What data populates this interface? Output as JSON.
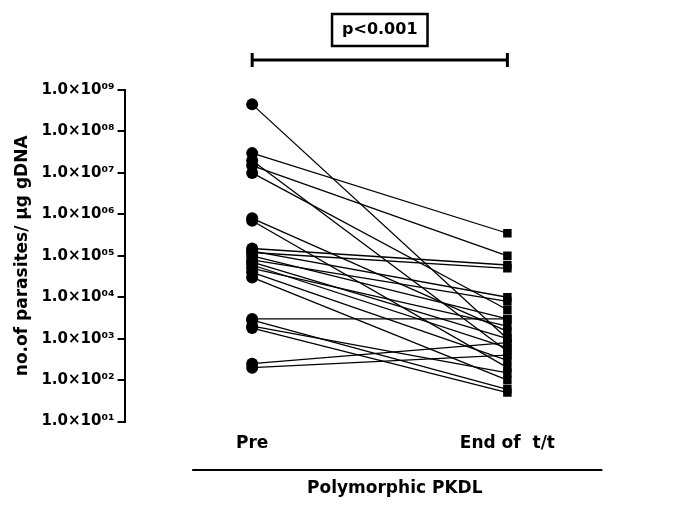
{
  "chart_data": {
    "type": "line",
    "ylabel": "no.of parasites/ µg gDNA",
    "xlabel": "Polymorphic PKDL",
    "annotations": [
      {
        "text": "p<0.001"
      }
    ],
    "categories": [
      "Pre",
      "End of  t/t"
    ],
    "color": "#000000",
    "log": "y",
    "grid": false,
    "ylim": [
      10,
      1000000000
    ],
    "yticks": [
      {
        "value": 10,
        "label": "1.0×10⁰¹"
      },
      {
        "value": 100,
        "label": "1.0×10⁰²"
      },
      {
        "value": 1000,
        "label": "1.0×10⁰³"
      },
      {
        "value": 10000,
        "label": "1.0×10⁰⁴"
      },
      {
        "value": 100000,
        "label": "1.0×10⁰⁵"
      },
      {
        "value": 1000000,
        "label": "1.0×10⁰⁶"
      },
      {
        "value": 10000000,
        "label": "1.0×10⁰⁷"
      },
      {
        "value": 100000000,
        "label": "1.0×10⁰⁸"
      },
      {
        "value": 1000000000,
        "label": "1.0×10⁰⁹"
      }
    ],
    "series": [
      {
        "values": [
          450000000,
          1000
        ]
      },
      {
        "values": [
          30000000,
          350000
        ]
      },
      {
        "values": [
          20000000,
          500
        ]
      },
      {
        "values": [
          15000000,
          100000
        ]
      },
      {
        "values": [
          10000000,
          5000
        ]
      },
      {
        "values": [
          800000,
          1500
        ]
      },
      {
        "values": [
          700000,
          200
        ]
      },
      {
        "values": [
          150000,
          60000
        ]
      },
      {
        "values": [
          130000,
          10000
        ]
      },
      {
        "values": [
          120000,
          50000
        ]
      },
      {
        "values": [
          100000,
          3000
        ]
      },
      {
        "values": [
          80000,
          8000
        ]
      },
      {
        "values": [
          70000,
          1000
        ]
      },
      {
        "values": [
          60000,
          600
        ]
      },
      {
        "values": [
          50000,
          2000
        ]
      },
      {
        "values": [
          40000,
          300
        ]
      },
      {
        "values": [
          30000,
          100
        ]
      },
      {
        "values": [
          3000,
          3000
        ]
      },
      {
        "values": [
          2800,
          60
        ]
      },
      {
        "values": [
          2000,
          150
        ]
      },
      {
        "values": [
          1800,
          50
        ]
      },
      {
        "values": [
          250,
          800
        ]
      },
      {
        "values": [
          200,
          400
        ]
      }
    ]
  }
}
